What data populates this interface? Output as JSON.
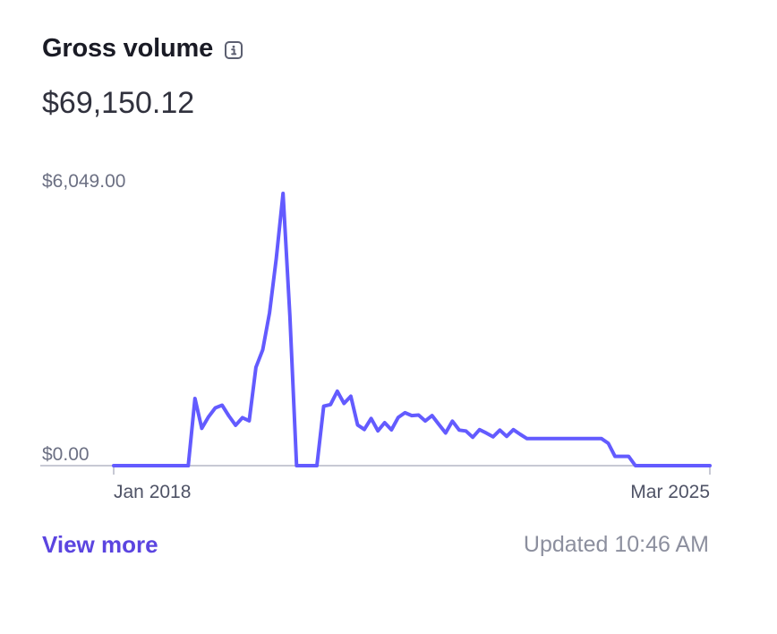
{
  "card": {
    "title": "Gross volume",
    "total": "$69,150.12",
    "view_more_label": "View more",
    "updated_text": "Updated 10:46 AM",
    "info_icon": "info-icon"
  },
  "colors": {
    "line": "#635bff",
    "link": "#5b45e0",
    "baseline": "#c7c9d4"
  },
  "chart_data": {
    "type": "line",
    "title": "",
    "xlabel": "",
    "ylabel": "",
    "ylim": [
      0,
      6049
    ],
    "y_tick_labels": [
      "$0.00",
      "$6,049.00"
    ],
    "x_tick_labels": [
      "Jan 2018",
      "Mar 2025"
    ],
    "grid": false,
    "series": [
      {
        "values": [
          0,
          0,
          0,
          0,
          0,
          0,
          0,
          0,
          0,
          0,
          0,
          0,
          1493,
          830,
          1086,
          1284,
          1343,
          1105,
          897,
          1066,
          996,
          2185,
          2574,
          3397,
          4598,
          6049,
          3338,
          0,
          0,
          0,
          0,
          1322,
          1357,
          1653,
          1383,
          1542,
          904,
          804,
          1049,
          775,
          955,
          795,
          1073,
          1175,
          1113,
          1124,
          992,
          1113,
          916,
          727,
          988,
          790,
          770,
          630,
          799,
          725,
          640,
          790,
          651,
          799,
          697,
          601,
          601,
          601,
          601,
          601,
          601,
          601,
          601,
          601,
          601,
          601,
          601,
          498,
          207,
          207,
          207,
          0,
          0,
          0,
          0,
          0,
          0,
          0,
          0,
          0,
          0,
          0,
          0
        ]
      }
    ]
  }
}
